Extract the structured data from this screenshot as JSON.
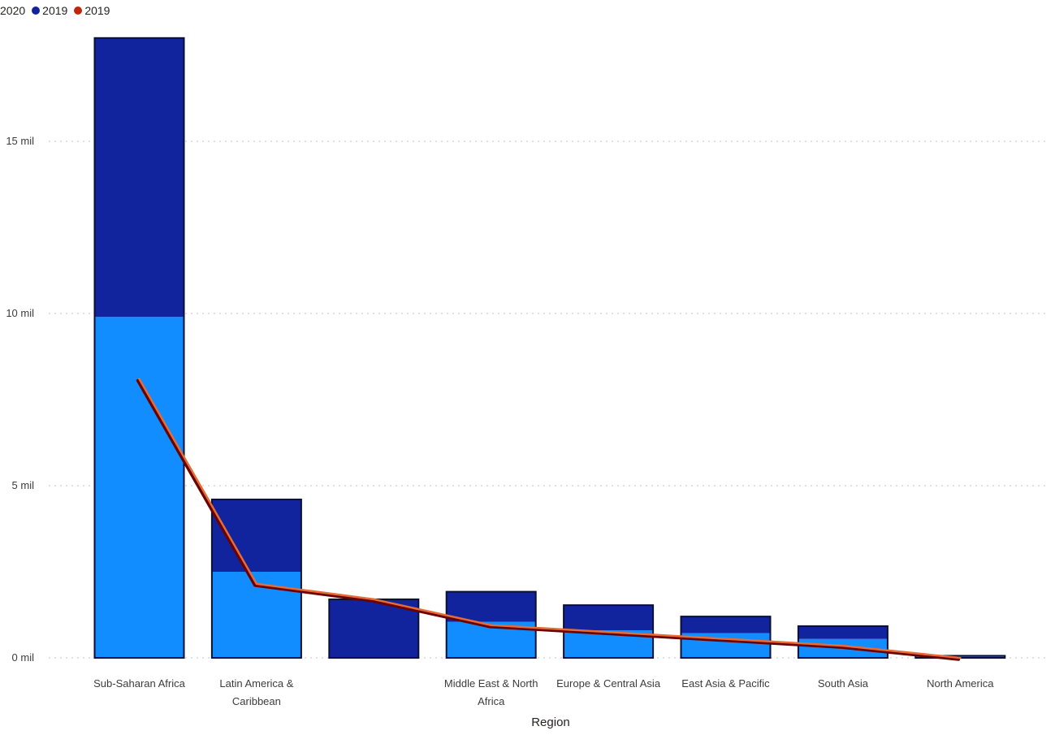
{
  "colors": {
    "series_2020": "#118DFF",
    "series_2019_bar": "#12239E",
    "series_2019_line": "#E66C37",
    "line_shadow": "#6B0000",
    "legend_2020_dot": "#118DFF",
    "legend_2019_bar_dot": "#12239E",
    "legend_2019_line_dot": "#C0260E",
    "grid": "#d9d9d9"
  },
  "chart_data": {
    "type": "bar",
    "stacked": true,
    "combo_line": true,
    "xlabel": "Region",
    "ylabel": "",
    "ylim": [
      0,
      18
    ],
    "yticks": [
      0,
      5,
      10,
      15
    ],
    "ytick_labels": [
      "0 mil",
      "5 mil",
      "10 mil",
      "15 mil"
    ],
    "grid": true,
    "legend_position": "top-left",
    "legend": [
      {
        "label": "2020",
        "color_key": "legend_2020_dot"
      },
      {
        "label": "2019",
        "color_key": "legend_2019_bar_dot"
      },
      {
        "label": "2019",
        "color_key": "legend_2019_line_dot"
      }
    ],
    "categories": [
      [
        "Sub-Saharan Africa"
      ],
      [
        "Latin America &",
        "Caribbean"
      ],
      [
        ""
      ],
      [
        "Middle East & North",
        "Africa"
      ],
      [
        "Europe & Central Asia"
      ],
      [
        "East Asia & Pacific"
      ],
      [
        "South Asia"
      ],
      [
        "North America"
      ]
    ],
    "series": [
      {
        "name": "2020",
        "kind": "bar",
        "color_key": "series_2020",
        "values": [
          9.9,
          2.5,
          0.0,
          1.05,
          0.8,
          0.72,
          0.55,
          0.03
        ]
      },
      {
        "name": "2019",
        "kind": "bar",
        "color_key": "series_2019_bar",
        "values": [
          8.1,
          2.1,
          1.7,
          0.87,
          0.73,
          0.48,
          0.37,
          0.03
        ]
      },
      {
        "name": "2019",
        "kind": "line",
        "color_key": "series_2019_line",
        "values": [
          8.1,
          2.15,
          1.7,
          0.95,
          0.75,
          0.55,
          0.35,
          0.0
        ]
      }
    ]
  }
}
